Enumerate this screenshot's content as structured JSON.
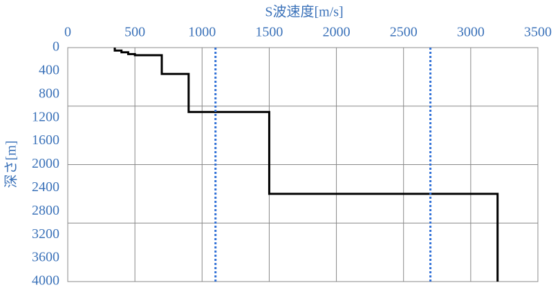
{
  "chart_data": {
    "type": "line",
    "x_label": "S波速度[m/s]",
    "y_label": "深さ[m]",
    "xlim": [
      0,
      3500
    ],
    "xticks": [
      0,
      500,
      1000,
      1500,
      2000,
      2500,
      3000,
      3500
    ],
    "ylim": [
      0,
      4000
    ],
    "yticks": [
      0,
      400,
      800,
      1200,
      1600,
      2000,
      2400,
      2800,
      3200,
      3600,
      4000
    ],
    "y_inverted": true,
    "ygrid": [
      1000,
      2000,
      3000
    ],
    "xgrid": true,
    "series": [
      {
        "color": "#000000",
        "style": "solid",
        "x": [
          350,
          350,
          400,
          400,
          450,
          450,
          500,
          500,
          700,
          700,
          900,
          900,
          1500,
          1500,
          3200,
          3200
        ],
        "y": [
          0,
          50,
          50,
          80,
          80,
          110,
          110,
          130,
          130,
          450,
          450,
          1100,
          1100,
          2500,
          2500,
          4000
        ]
      },
      {
        "color": "#2f6fd6",
        "style": "dotted",
        "x": [
          1100,
          1100
        ],
        "y": [
          0,
          4000
        ]
      },
      {
        "color": "#2f6fd6",
        "style": "dotted",
        "x": [
          2700,
          2700
        ],
        "y": [
          0,
          4000
        ]
      }
    ]
  }
}
